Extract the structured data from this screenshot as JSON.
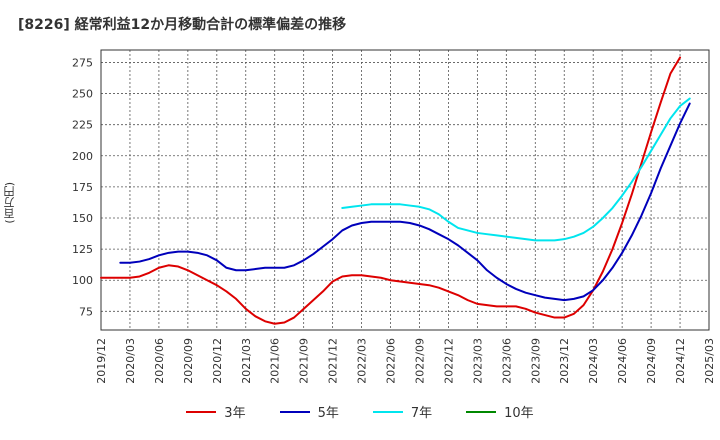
{
  "chart_data": {
    "type": "line",
    "title": "[8226]  経常利益12か月移動合計の標準偏差の推移",
    "ylabel": "(百万円)",
    "xlabel": "",
    "ylim": [
      60,
      285
    ],
    "yticks": [
      75,
      100,
      125,
      150,
      175,
      200,
      225,
      250,
      275
    ],
    "xticks": [
      "2019/12",
      "2020/03",
      "2020/06",
      "2020/09",
      "2020/12",
      "2021/03",
      "2021/06",
      "2021/09",
      "2021/12",
      "2022/03",
      "2022/06",
      "2022/09",
      "2022/12",
      "2023/03",
      "2023/06",
      "2023/09",
      "2023/12",
      "2024/03",
      "2024/06",
      "2024/09",
      "2024/12",
      "2025/03"
    ],
    "grid": true,
    "legend_position": "bottom",
    "series": [
      {
        "name": "3年",
        "color": "#dd0000",
        "points": [
          [
            "2019/12",
            102
          ],
          [
            "2020/01",
            102
          ],
          [
            "2020/02",
            102
          ],
          [
            "2020/03",
            102
          ],
          [
            "2020/04",
            103
          ],
          [
            "2020/05",
            106
          ],
          [
            "2020/06",
            110
          ],
          [
            "2020/07",
            112
          ],
          [
            "2020/08",
            111
          ],
          [
            "2020/09",
            108
          ],
          [
            "2020/10",
            104
          ],
          [
            "2020/11",
            100
          ],
          [
            "2020/12",
            96
          ],
          [
            "2021/01",
            91
          ],
          [
            "2021/02",
            85
          ],
          [
            "2021/03",
            77
          ],
          [
            "2021/04",
            71
          ],
          [
            "2021/05",
            67
          ],
          [
            "2021/06",
            65
          ],
          [
            "2021/07",
            66
          ],
          [
            "2021/08",
            70
          ],
          [
            "2021/09",
            77
          ],
          [
            "2021/10",
            84
          ],
          [
            "2021/11",
            91
          ],
          [
            "2021/12",
            99
          ],
          [
            "2022/01",
            103
          ],
          [
            "2022/02",
            104
          ],
          [
            "2022/03",
            104
          ],
          [
            "2022/04",
            103
          ],
          [
            "2022/05",
            102
          ],
          [
            "2022/06",
            100
          ],
          [
            "2022/07",
            99
          ],
          [
            "2022/08",
            98
          ],
          [
            "2022/09",
            97
          ],
          [
            "2022/10",
            96
          ],
          [
            "2022/11",
            94
          ],
          [
            "2022/12",
            91
          ],
          [
            "2023/01",
            88
          ],
          [
            "2023/02",
            84
          ],
          [
            "2023/03",
            81
          ],
          [
            "2023/04",
            80
          ],
          [
            "2023/05",
            79
          ],
          [
            "2023/06",
            79
          ],
          [
            "2023/07",
            79
          ],
          [
            "2023/08",
            77
          ],
          [
            "2023/09",
            74
          ],
          [
            "2023/10",
            72
          ],
          [
            "2023/11",
            70
          ],
          [
            "2023/12",
            70
          ],
          [
            "2024/01",
            73
          ],
          [
            "2024/02",
            80
          ],
          [
            "2024/03",
            92
          ],
          [
            "2024/04",
            107
          ],
          [
            "2024/05",
            125
          ],
          [
            "2024/06",
            146
          ],
          [
            "2024/07",
            169
          ],
          [
            "2024/08",
            194
          ],
          [
            "2024/09",
            219
          ],
          [
            "2024/10",
            243
          ],
          [
            "2024/11",
            266
          ],
          [
            "2024/12",
            279
          ]
        ]
      },
      {
        "name": "5年",
        "color": "#0000bb",
        "points": [
          [
            "2020/02",
            114
          ],
          [
            "2020/03",
            114
          ],
          [
            "2020/04",
            115
          ],
          [
            "2020/05",
            117
          ],
          [
            "2020/06",
            120
          ],
          [
            "2020/07",
            122
          ],
          [
            "2020/08",
            123
          ],
          [
            "2020/09",
            123
          ],
          [
            "2020/10",
            122
          ],
          [
            "2020/11",
            120
          ],
          [
            "2020/12",
            116
          ],
          [
            "2021/01",
            110
          ],
          [
            "2021/02",
            108
          ],
          [
            "2021/03",
            108
          ],
          [
            "2021/04",
            109
          ],
          [
            "2021/05",
            110
          ],
          [
            "2021/06",
            110
          ],
          [
            "2021/07",
            110
          ],
          [
            "2021/08",
            112
          ],
          [
            "2021/09",
            116
          ],
          [
            "2021/10",
            121
          ],
          [
            "2021/11",
            127
          ],
          [
            "2021/12",
            133
          ],
          [
            "2022/01",
            140
          ],
          [
            "2022/02",
            144
          ],
          [
            "2022/03",
            146
          ],
          [
            "2022/04",
            147
          ],
          [
            "2022/05",
            147
          ],
          [
            "2022/06",
            147
          ],
          [
            "2022/07",
            147
          ],
          [
            "2022/08",
            146
          ],
          [
            "2022/09",
            144
          ],
          [
            "2022/10",
            141
          ],
          [
            "2022/11",
            137
          ],
          [
            "2022/12",
            133
          ],
          [
            "2023/01",
            128
          ],
          [
            "2023/02",
            122
          ],
          [
            "2023/03",
            116
          ],
          [
            "2023/04",
            108
          ],
          [
            "2023/05",
            102
          ],
          [
            "2023/06",
            97
          ],
          [
            "2023/07",
            93
          ],
          [
            "2023/08",
            90
          ],
          [
            "2023/09",
            88
          ],
          [
            "2023/10",
            86
          ],
          [
            "2023/11",
            85
          ],
          [
            "2023/12",
            84
          ],
          [
            "2024/01",
            85
          ],
          [
            "2024/02",
            87
          ],
          [
            "2024/03",
            92
          ],
          [
            "2024/04",
            100
          ],
          [
            "2024/05",
            110
          ],
          [
            "2024/06",
            122
          ],
          [
            "2024/07",
            136
          ],
          [
            "2024/08",
            152
          ],
          [
            "2024/09",
            170
          ],
          [
            "2024/10",
            190
          ],
          [
            "2024/11",
            208
          ],
          [
            "2024/12",
            226
          ],
          [
            "2025/01",
            242
          ]
        ]
      },
      {
        "name": "7年",
        "color": "#00e5ee",
        "points": [
          [
            "2022/01",
            158
          ],
          [
            "2022/02",
            159
          ],
          [
            "2022/03",
            160
          ],
          [
            "2022/04",
            161
          ],
          [
            "2022/05",
            161
          ],
          [
            "2022/06",
            161
          ],
          [
            "2022/07",
            161
          ],
          [
            "2022/08",
            160
          ],
          [
            "2022/09",
            159
          ],
          [
            "2022/10",
            157
          ],
          [
            "2022/11",
            153
          ],
          [
            "2022/12",
            147
          ],
          [
            "2023/01",
            142
          ],
          [
            "2023/02",
            140
          ],
          [
            "2023/03",
            138
          ],
          [
            "2023/04",
            137
          ],
          [
            "2023/05",
            136
          ],
          [
            "2023/06",
            135
          ],
          [
            "2023/07",
            134
          ],
          [
            "2023/08",
            133
          ],
          [
            "2023/09",
            132
          ],
          [
            "2023/10",
            132
          ],
          [
            "2023/11",
            132
          ],
          [
            "2023/12",
            133
          ],
          [
            "2024/01",
            135
          ],
          [
            "2024/02",
            138
          ],
          [
            "2024/03",
            143
          ],
          [
            "2024/04",
            150
          ],
          [
            "2024/05",
            158
          ],
          [
            "2024/06",
            168
          ],
          [
            "2024/07",
            179
          ],
          [
            "2024/08",
            191
          ],
          [
            "2024/09",
            204
          ],
          [
            "2024/10",
            217
          ],
          [
            "2024/11",
            230
          ],
          [
            "2024/12",
            240
          ],
          [
            "2025/01",
            246
          ]
        ]
      },
      {
        "name": "10年",
        "color": "#008800",
        "points": []
      }
    ]
  }
}
